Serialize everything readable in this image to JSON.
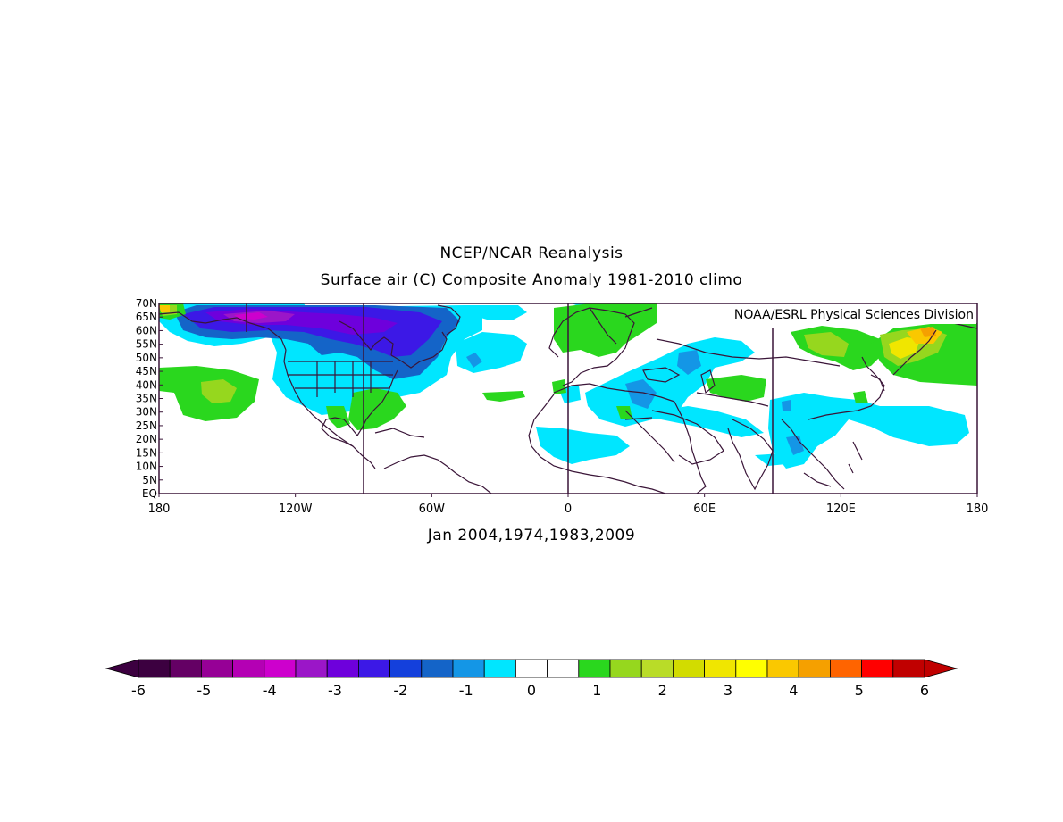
{
  "header": {
    "title": "NCEP/NCAR Reanalysis",
    "subtitle": "Surface air (C) Composite Anomaly 1981-2010 climo"
  },
  "credit": "NOAA/ESRL Physical Sciences Division",
  "footer": "Jan 2004,1974,1983,2009",
  "map": {
    "lat_range": [
      0,
      70
    ],
    "lon_range": [
      -180,
      180
    ],
    "lat_labels": [
      "70N",
      "65N",
      "60N",
      "55N",
      "50N",
      "45N",
      "40N",
      "35N",
      "30N",
      "25N",
      "20N",
      "15N",
      "10N",
      "5N",
      "EQ"
    ],
    "lon_labels": [
      "180",
      "120W",
      "60W",
      "0",
      "60E",
      "120E",
      "180"
    ],
    "colors": {
      "background": "#ffffff",
      "coast": "#3a1538",
      "frame": "#3a1538"
    }
  },
  "colorbar": {
    "ticks": [
      "-6",
      "-5",
      "-4",
      "-3",
      "-2",
      "-1",
      "0",
      "1",
      "2",
      "3",
      "4",
      "5",
      "6"
    ],
    "colors": [
      "#3c0040",
      "#640064",
      "#960096",
      "#b400b4",
      "#cd00cd",
      "#9b16c8",
      "#6e00dc",
      "#3c18e6",
      "#1440dc",
      "#1464c8",
      "#1496e6",
      "#00e6ff",
      "#ffffff",
      "#ffffff",
      "#2ad71e",
      "#96d71e",
      "#b9dc28",
      "#d2dc00",
      "#f0e600",
      "#ffff00",
      "#fac800",
      "#f5a000",
      "#ff6400",
      "#ff0000",
      "#c00000"
    ],
    "under_color": "#3c0040",
    "over_color": "#c00000"
  }
}
